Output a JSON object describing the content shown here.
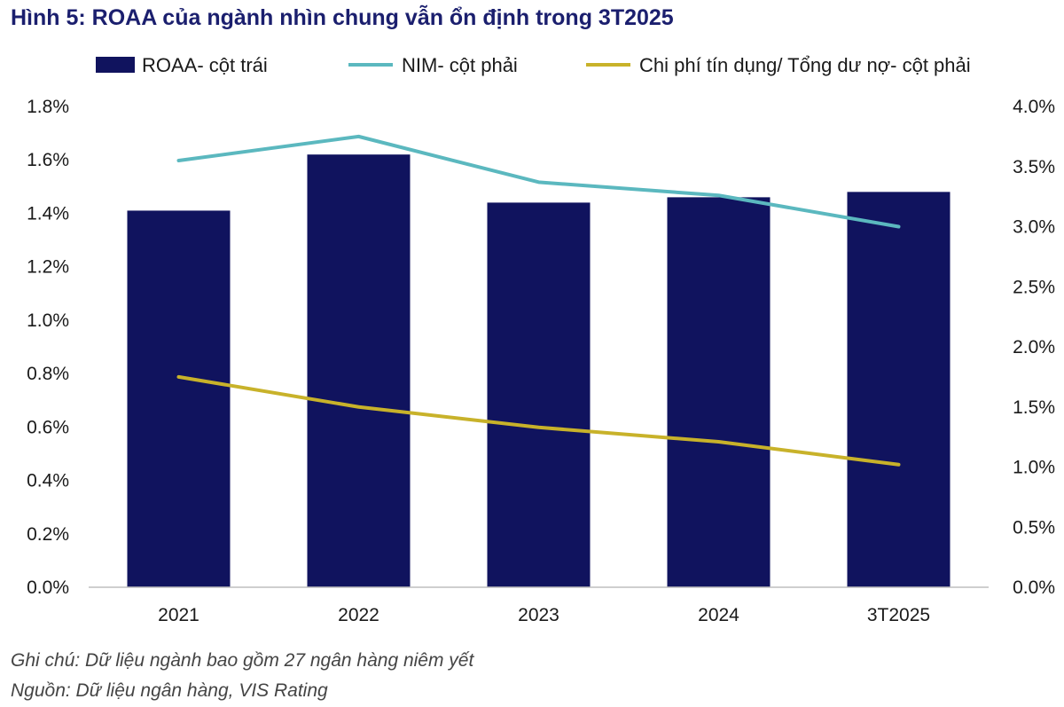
{
  "title": "Hình 5: ROAA của ngành nhìn chung vẫn ổn định trong 3T2025",
  "chart_data": {
    "type": "bar",
    "categories": [
      "2021",
      "2022",
      "2023",
      "2024",
      "3T2025"
    ],
    "series": [
      {
        "name": "ROAA- cột trái",
        "type": "bar",
        "axis": "left",
        "values": [
          1.41,
          1.62,
          1.44,
          1.46,
          1.48
        ],
        "color": "#10135e"
      },
      {
        "name": "NIM- cột phải",
        "type": "line",
        "axis": "right",
        "values": [
          3.55,
          3.75,
          3.37,
          3.26,
          3.0
        ],
        "color": "#5bb8bf"
      },
      {
        "name": "Chi phí tín dụng/ Tổng dư nợ- cột phải",
        "type": "line",
        "axis": "right",
        "values": [
          1.75,
          1.5,
          1.33,
          1.21,
          1.02
        ],
        "color": "#c8b22a"
      }
    ],
    "left_axis": {
      "ylim": [
        0,
        1.8
      ],
      "tick_labels": [
        "0.0%",
        "0.2%",
        "0.4%",
        "0.6%",
        "0.8%",
        "1.0%",
        "1.2%",
        "1.4%",
        "1.6%",
        "1.8%"
      ]
    },
    "right_axis": {
      "ylim": [
        0,
        4.0
      ],
      "tick_labels": [
        "0.0%",
        "0.5%",
        "1.0%",
        "1.5%",
        "2.0%",
        "2.5%",
        "3.0%",
        "3.5%",
        "4.0%"
      ]
    },
    "legend_position": "top"
  },
  "notes": {
    "note": "Ghi chú: Dữ liệu ngành bao gồm 27 ngân hàng niêm yết",
    "source": "Nguồn: Dữ liệu ngân hàng, VIS Rating"
  }
}
